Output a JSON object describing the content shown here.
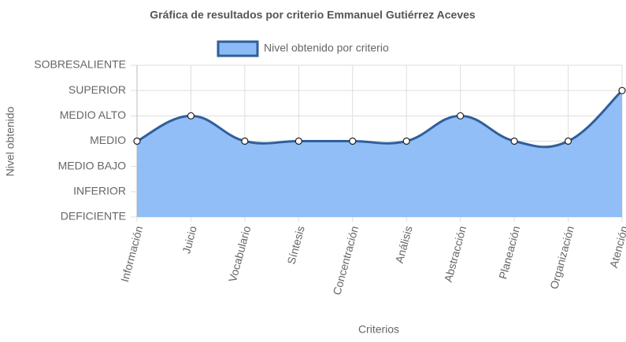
{
  "chart_data": {
    "type": "line",
    "title": "Gráfica de resultados por criterio Emmanuel Gutiérrez Aceves",
    "x_label": "Criterios",
    "y_label": "Nivel obtenido",
    "categories": [
      "Información",
      "Juicio",
      "Vocabulario",
      "Síntesis",
      "Concentración",
      "Análisis",
      "Abstracción",
      "Planeación",
      "Organización",
      "Atención"
    ],
    "series": [
      {
        "name": "Nivel obtenido por criterio",
        "color": "#2f5f9a",
        "fill": "#8bbaf7",
        "values": [
          3,
          4,
          3,
          3,
          3,
          3,
          4,
          3,
          3,
          5
        ]
      }
    ],
    "ylim": [
      0,
      6
    ],
    "yticks": [
      {
        "value": 0,
        "label": "DEFICIENTE"
      },
      {
        "value": 1,
        "label": "INFERIOR"
      },
      {
        "value": 2,
        "label": "MEDIO BAJO"
      },
      {
        "value": 3,
        "label": "MEDIO"
      },
      {
        "value": 4,
        "label": "MEDIO ALTO"
      },
      {
        "value": 5,
        "label": "SUPERIOR"
      },
      {
        "value": 6,
        "label": "SOBRESALIENTE"
      }
    ],
    "grid": true,
    "legend": "top"
  }
}
